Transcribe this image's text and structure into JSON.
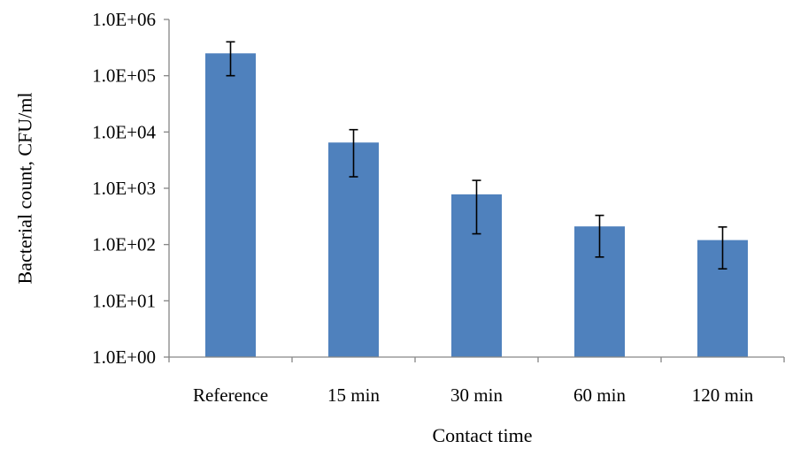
{
  "chart_data": {
    "type": "bar",
    "categories": [
      "Reference",
      "15 min",
      "30 min",
      "60 min",
      "120 min"
    ],
    "series": [
      {
        "values": [
          250000,
          6500,
          780,
          210,
          120
        ],
        "error_low": [
          100000,
          1600,
          155,
          60,
          37
        ],
        "error_high": [
          400000,
          11000,
          1380,
          330,
          205
        ]
      }
    ],
    "xlabel": "Contact time",
    "ylabel": "Bacterial count, CFU/ml",
    "y_scale": "log",
    "ylim": [
      1,
      1000000
    ],
    "yticks": [
      1,
      10,
      100,
      1000,
      10000,
      100000,
      1000000
    ],
    "ytick_labels": [
      "1.0E+00",
      "1.0E+01",
      "1.0E+02",
      "1.0E+03",
      "1.0E+04",
      "1.0E+05",
      "1.0E+06"
    ],
    "grid": false,
    "legend": "none",
    "colors": {
      "bar": "#4F81BD",
      "error_bar": "#000000",
      "axis": "#868686"
    }
  }
}
